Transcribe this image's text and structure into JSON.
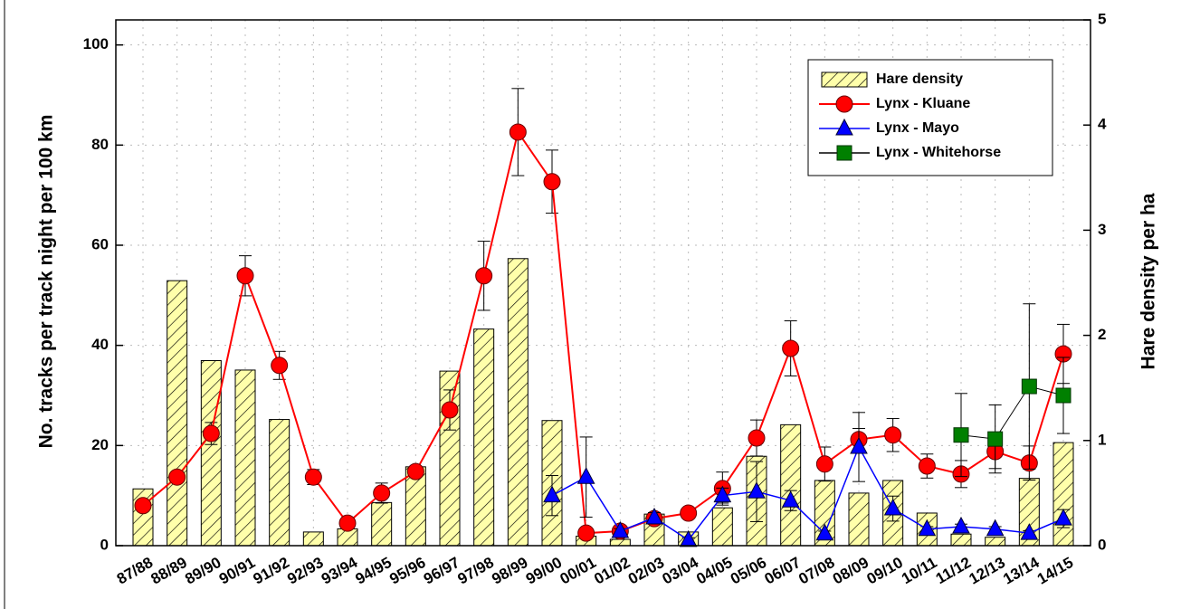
{
  "chart_data": {
    "type": "combo",
    "y_label": "No. tracks per track night per 100 km",
    "y2_label": "Hare density per ha",
    "categories": [
      "87/88",
      "88/89",
      "89/90",
      "90/91",
      "91/92",
      "92/93",
      "93/94",
      "94/95",
      "95/96",
      "96/97",
      "97/98",
      "98/99",
      "99/00",
      "00/01",
      "01/02",
      "02/03",
      "03/04",
      "04/05",
      "05/06",
      "06/07",
      "07/08",
      "08/09",
      "09/10",
      "10/11",
      "11/12",
      "12/13",
      "13/14",
      "14/15"
    ],
    "ylim": [
      0,
      105
    ],
    "yticks": [
      0,
      20,
      40,
      60,
      80,
      100
    ],
    "y2lim": [
      0,
      5
    ],
    "y2ticks": [
      0,
      1,
      2,
      3,
      4,
      5
    ],
    "grid": true,
    "legend": "upper right",
    "series": [
      {
        "name": "Hare density",
        "type": "bar",
        "axis": "y2",
        "color": "#ffffaa",
        "values": [
          0.54,
          2.52,
          1.76,
          1.67,
          1.2,
          0.13,
          0.16,
          0.41,
          0.75,
          1.66,
          2.06,
          2.73,
          1.19,
          0.09,
          0.06,
          0.3,
          0.13,
          0.36,
          0.85,
          1.15,
          0.62,
          0.5,
          0.62,
          0.31,
          0.11,
          0.08,
          0.64,
          0.98
        ]
      },
      {
        "name": "Lynx - Kluane",
        "type": "line",
        "marker": "circle",
        "color": "#ff0000",
        "values": [
          8.0,
          13.7,
          22.4,
          53.9,
          36.0,
          13.7,
          4.5,
          10.5,
          14.8,
          27.1,
          53.9,
          82.6,
          72.7,
          2.5,
          2.9,
          5.4,
          6.5,
          11.4,
          21.5,
          39.4,
          16.3,
          21.2,
          22.1,
          15.9,
          14.3,
          18.8,
          16.5,
          38.3
        ],
        "errors": [
          0.5,
          1,
          2.2,
          4,
          2.8,
          1.5,
          0.5,
          2,
          1,
          4,
          6.9,
          8.7,
          6.3,
          0.5,
          0.5,
          1,
          1,
          3.3,
          3.6,
          5.5,
          3.4,
          2.2,
          3.3,
          2.4,
          2.7,
          3.4,
          3.4,
          5.9
        ]
      },
      {
        "name": "Lynx - Mayo",
        "type": "line",
        "marker": "triangle",
        "color": "#0000ff",
        "values": [
          null,
          null,
          null,
          null,
          null,
          null,
          null,
          null,
          null,
          null,
          null,
          null,
          10.0,
          13.7,
          2.9,
          5.6,
          1.1,
          10.0,
          10.8,
          9.0,
          2.4,
          19.7,
          7.4,
          3.3,
          3.8,
          3.3,
          2.5,
          5.4
        ],
        "errors": [
          null,
          null,
          null,
          null,
          null,
          null,
          null,
          null,
          null,
          null,
          null,
          null,
          4,
          8,
          0.5,
          1,
          0.5,
          1.5,
          6,
          2,
          0.5,
          6.9,
          2.5,
          0.5,
          0.5,
          0.5,
          0.5,
          1.8
        ]
      },
      {
        "name": "Lynx - Whitehorse",
        "type": "line",
        "marker": "square",
        "color": "#008000",
        "values": [
          null,
          null,
          null,
          null,
          null,
          null,
          null,
          null,
          null,
          null,
          null,
          null,
          null,
          null,
          null,
          null,
          null,
          null,
          null,
          null,
          null,
          null,
          null,
          null,
          22.1,
          21.3,
          31.8,
          30.0
        ],
        "errors": [
          null,
          null,
          null,
          null,
          null,
          null,
          null,
          null,
          null,
          null,
          null,
          null,
          null,
          null,
          null,
          null,
          null,
          null,
          null,
          null,
          null,
          null,
          null,
          null,
          8.3,
          6.8,
          16.5,
          7.6
        ]
      }
    ]
  }
}
